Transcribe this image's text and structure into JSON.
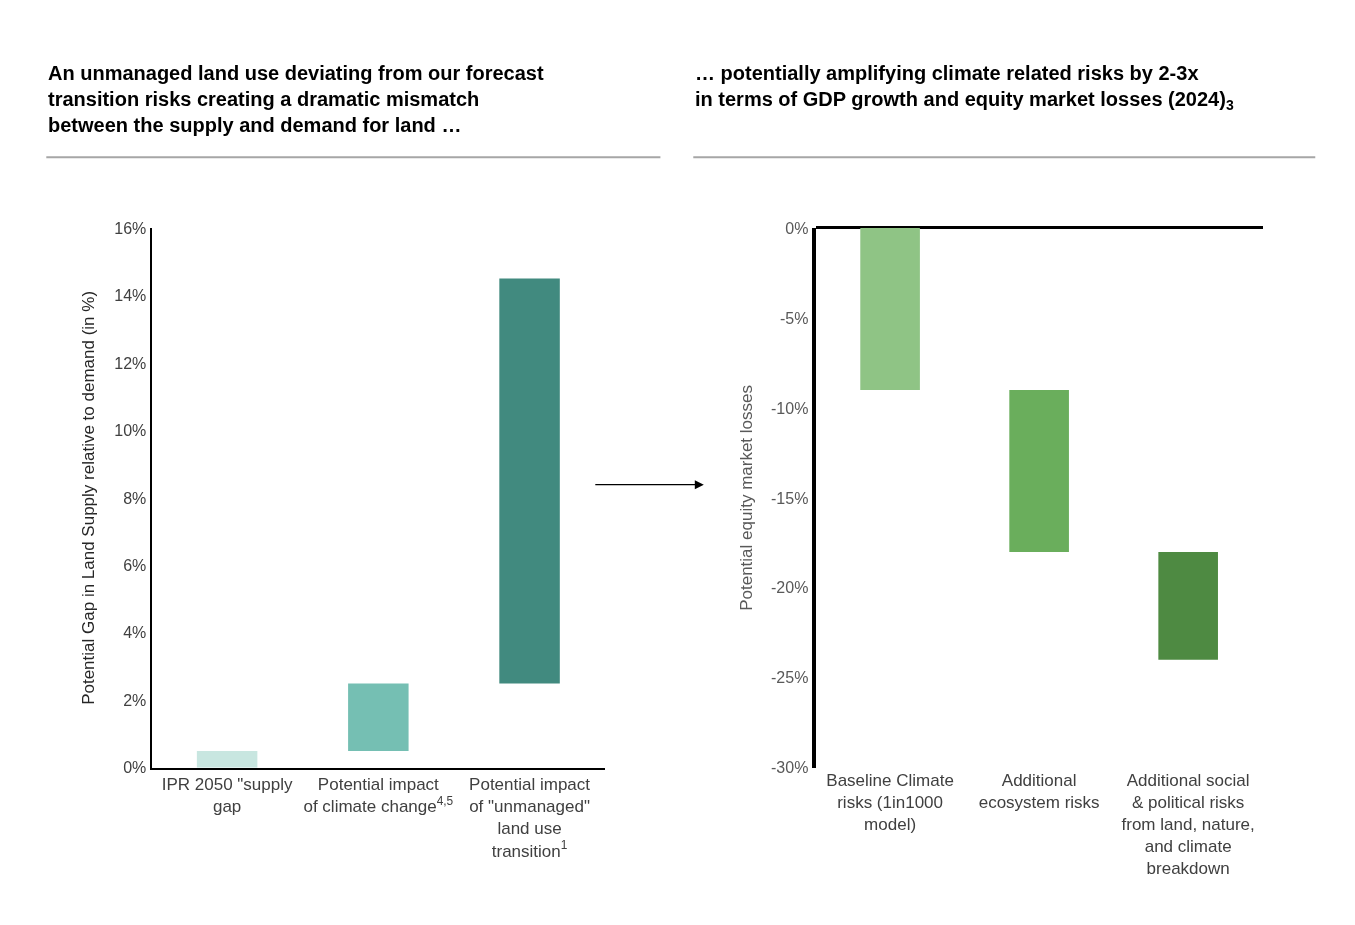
{
  "chart_data": [
    {
      "type": "bar",
      "title": "An unmanaged land use deviating from our forecast transition risks creating a dramatic mismatch between the supply and demand for land …",
      "ylabel": "Potential Gap in Land Supply relative to demand (in %)",
      "categories": [
        "IPR 2050 \"supply gap",
        "Potential impact of climate change$^{4,5}$",
        "Potential impact of \"unmanaged\" land use transition$^{1}$"
      ],
      "values": [
        0.5,
        2,
        12
      ],
      "base": [
        0,
        0.5,
        2.5
      ],
      "colors": [
        "#c8e6e0",
        "#75bfb3",
        "#418a7f"
      ],
      "ylim": [
        0,
        16
      ],
      "yticks": [
        {
          "value": 0,
          "label": "0%"
        },
        {
          "value": 2,
          "label": "2%"
        },
        {
          "value": 4,
          "label": "4%"
        },
        {
          "value": 6,
          "label": "6%"
        },
        {
          "value": 8,
          "label": "8%"
        },
        {
          "value": 10,
          "label": "10%"
        },
        {
          "value": 12,
          "label": "12%"
        },
        {
          "value": 14,
          "label": "14%"
        },
        {
          "value": 16,
          "label": "16%"
        }
      ]
    },
    {
      "type": "bar",
      "title": "… potentially amplifying climate related risks by 2-3x in terms of GDP growth and equity market losses (2024)$_{3}$",
      "ylabel": "Potential equity market losses",
      "categories": [
        "Baseline Climate risks (1in1000 model)",
        "Additional ecosystem risks",
        "Additional social & political risks from land, nature, and climate breakdown"
      ],
      "values": [
        -9,
        -9,
        -6
      ],
      "base": [
        0,
        -9,
        -18
      ],
      "colors": [
        "#8fc485",
        "#6aae5c",
        "#4e8a42"
      ],
      "ylim": [
        -30,
        0
      ],
      "yticks": [
        {
          "value": 0,
          "label": "0%"
        },
        {
          "value": -5,
          "label": "-5%"
        },
        {
          "value": -10,
          "label": "-10%"
        },
        {
          "value": -15,
          "label": "-15%"
        },
        {
          "value": -20,
          "label": "-20%"
        },
        {
          "value": -25,
          "label": "-25%"
        },
        {
          "value": -30,
          "label": "-30%"
        }
      ]
    }
  ]
}
